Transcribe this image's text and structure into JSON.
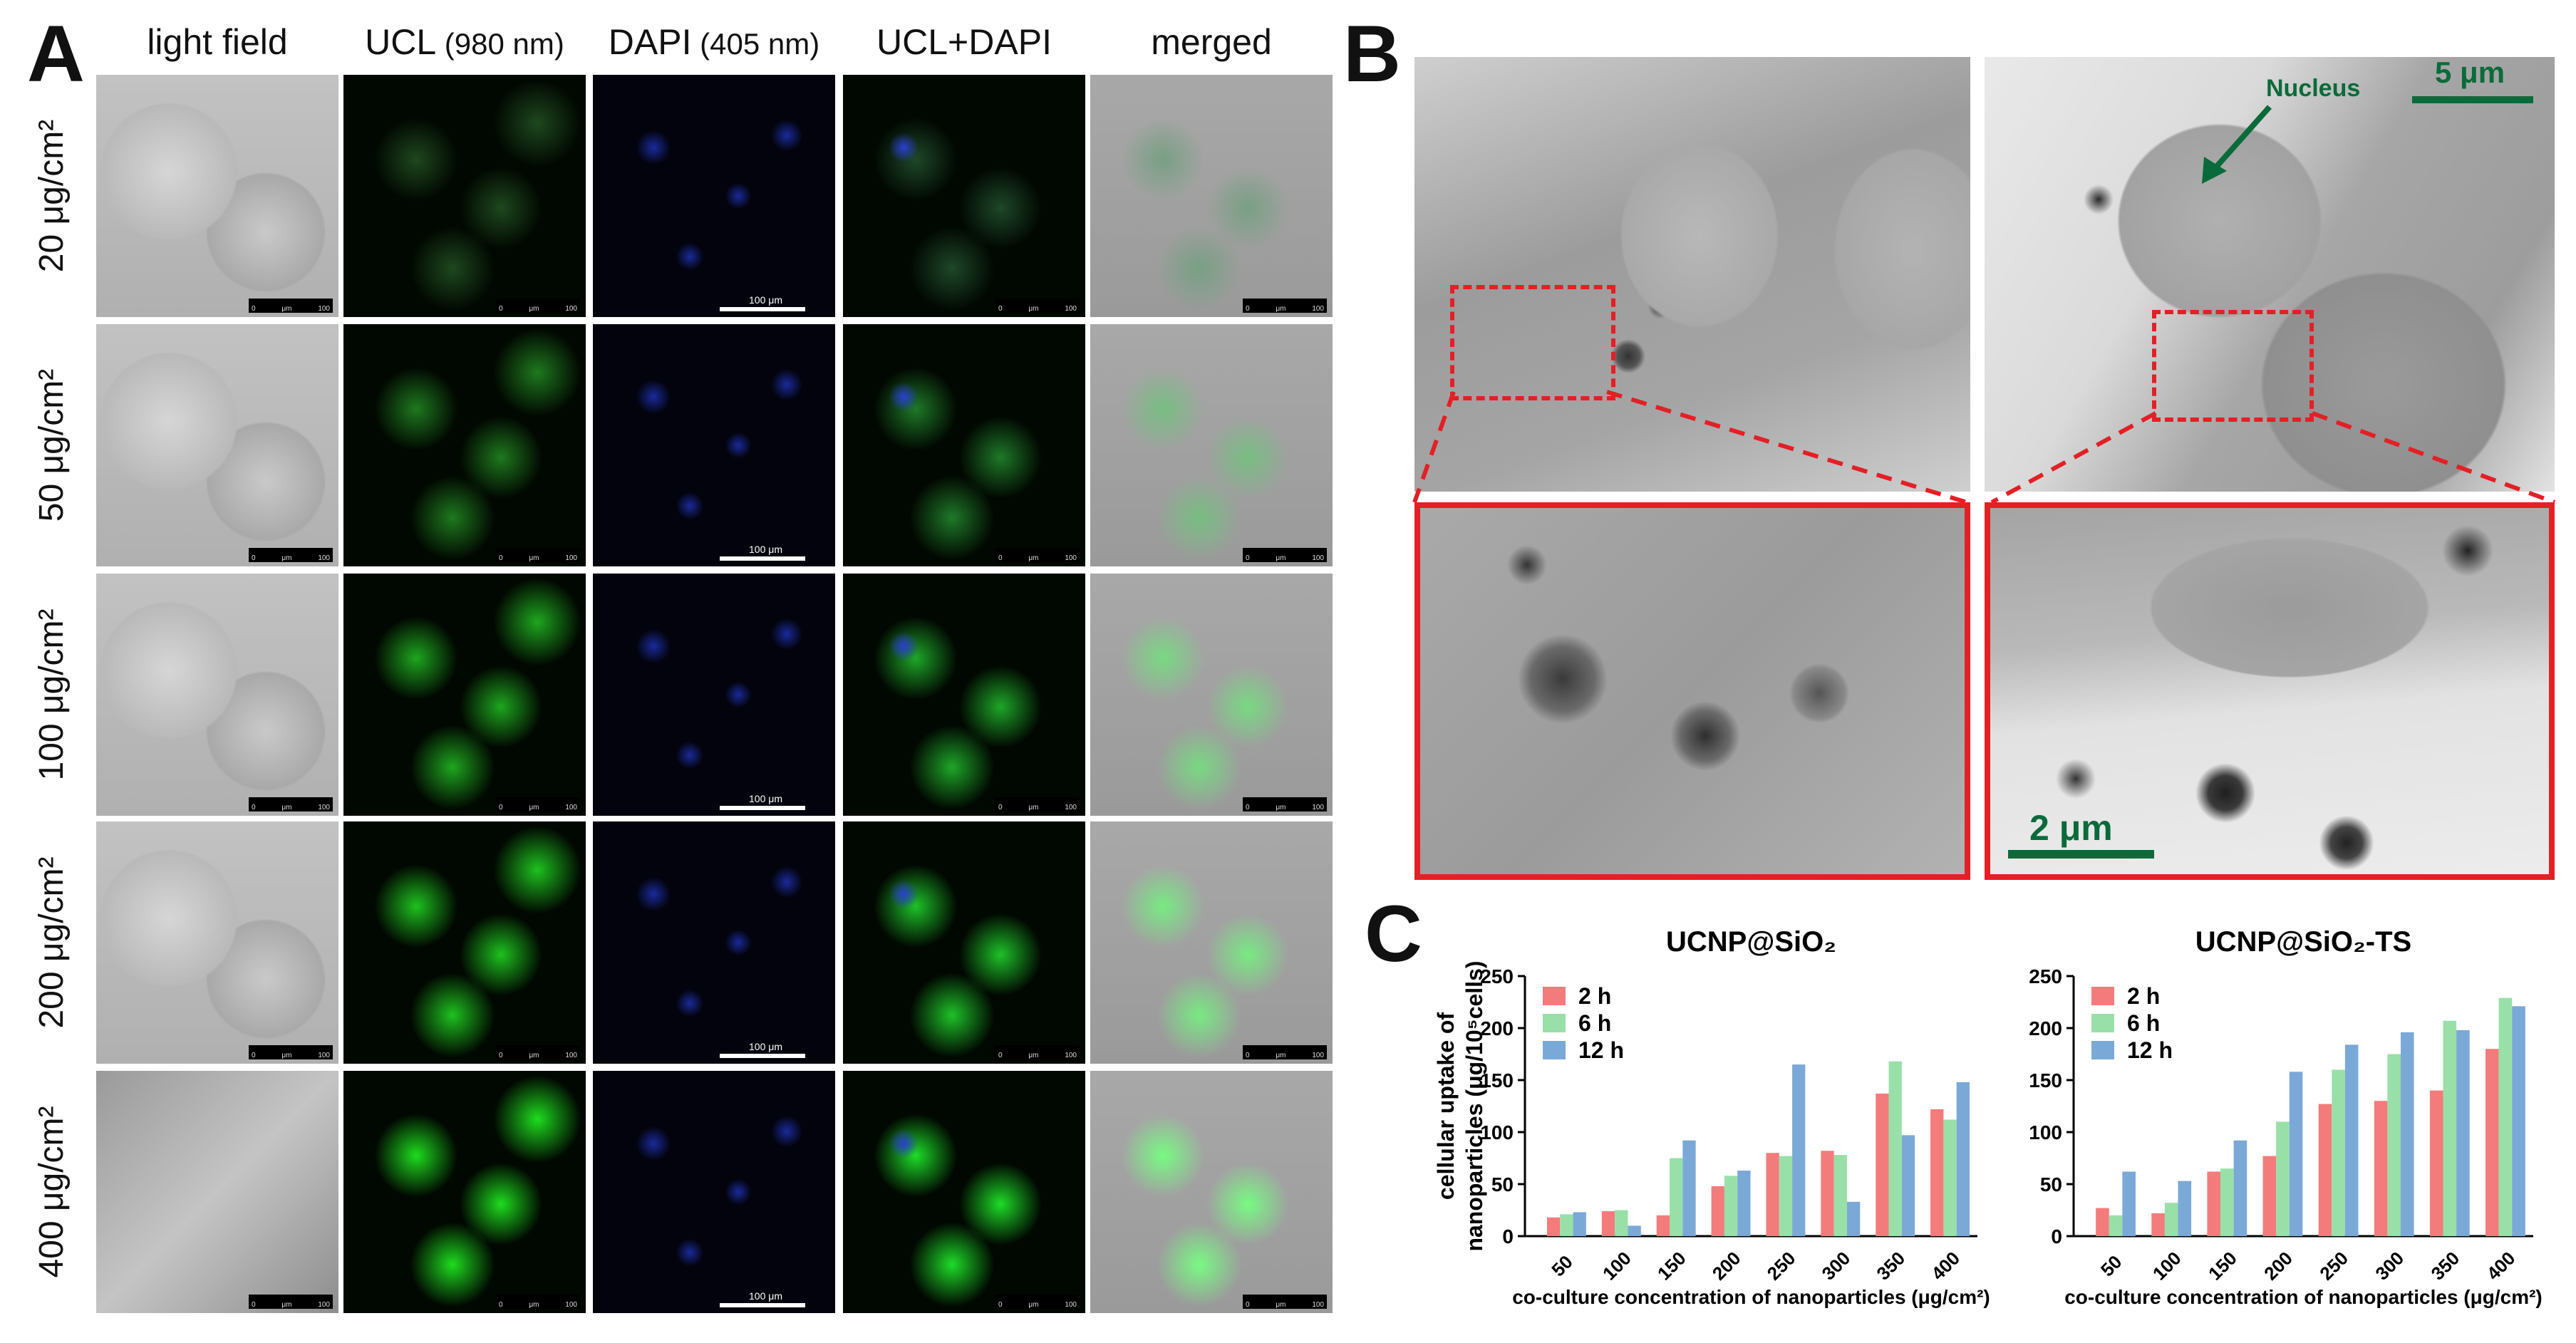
{
  "panelA": {
    "letter": "A",
    "columns": [
      {
        "name": "light field",
        "paren": ""
      },
      {
        "name": "UCL",
        "paren": "(980 nm)"
      },
      {
        "name": "DAPI",
        "paren": "(405 nm)"
      },
      {
        "name": "UCL+DAPI",
        "paren": ""
      },
      {
        "name": "merged",
        "paren": ""
      }
    ],
    "rows": [
      "20 μg/cm²",
      "50 μg/cm²",
      "100 μg/cm²",
      "200 μg/cm²",
      "400 μg/cm²"
    ],
    "scale_text": {
      "zero": "0",
      "unit": "μm",
      "hundred": "100"
    },
    "dapi_scale": "100  μm"
  },
  "panelB": {
    "letter": "B",
    "nucleus_label": "Nucleus",
    "scale_top": "5 μm",
    "scale_bottom": "2 μm"
  },
  "panelC": {
    "letter": "C",
    "colors": {
      "2 h": "#f47b7b",
      "6 h": "#98e0a8",
      "12 h": "#7aa9d8"
    },
    "chart_data": [
      {
        "type": "bar",
        "title": "UCNP@SiO₂",
        "categories": [
          "50",
          "100",
          "150",
          "200",
          "250",
          "300",
          "350",
          "400"
        ],
        "series": [
          {
            "name": "2 h",
            "values": [
              18,
              24,
              20,
              48,
              80,
              82,
              137,
              122
            ]
          },
          {
            "name": "6 h",
            "values": [
              21,
              25,
              75,
              58,
              77,
              78,
              168,
              112
            ]
          },
          {
            "name": "12 h",
            "values": [
              23,
              10,
              92,
              63,
              165,
              33,
              97,
              148
            ]
          }
        ],
        "ylabel_line1": "cellular uptake of",
        "ylabel_line2": "nanoparticles (μg/10⁵cells)",
        "xlabel": "co-culture concentration of nanoparticles (μg/cm²)",
        "ylim": [
          0,
          250
        ],
        "yticks": [
          0,
          50,
          100,
          150,
          200,
          250
        ]
      },
      {
        "type": "bar",
        "title": "UCNP@SiO₂-TS",
        "categories": [
          "50",
          "100",
          "150",
          "200",
          "250",
          "300",
          "350",
          "400"
        ],
        "series": [
          {
            "name": "2 h",
            "values": [
              27,
              22,
              62,
              77,
              127,
              130,
              140,
              180
            ]
          },
          {
            "name": "6 h",
            "values": [
              20,
              32,
              65,
              110,
              160,
              175,
              207,
              229
            ]
          },
          {
            "name": "12 h",
            "values": [
              62,
              53,
              92,
              158,
              184,
              196,
              198,
              221
            ]
          }
        ],
        "xlabel": "co-culture concentration of nanoparticles (μg/cm²)",
        "ylim": [
          0,
          250
        ],
        "yticks": [
          0,
          50,
          100,
          150,
          200,
          250
        ]
      }
    ]
  }
}
